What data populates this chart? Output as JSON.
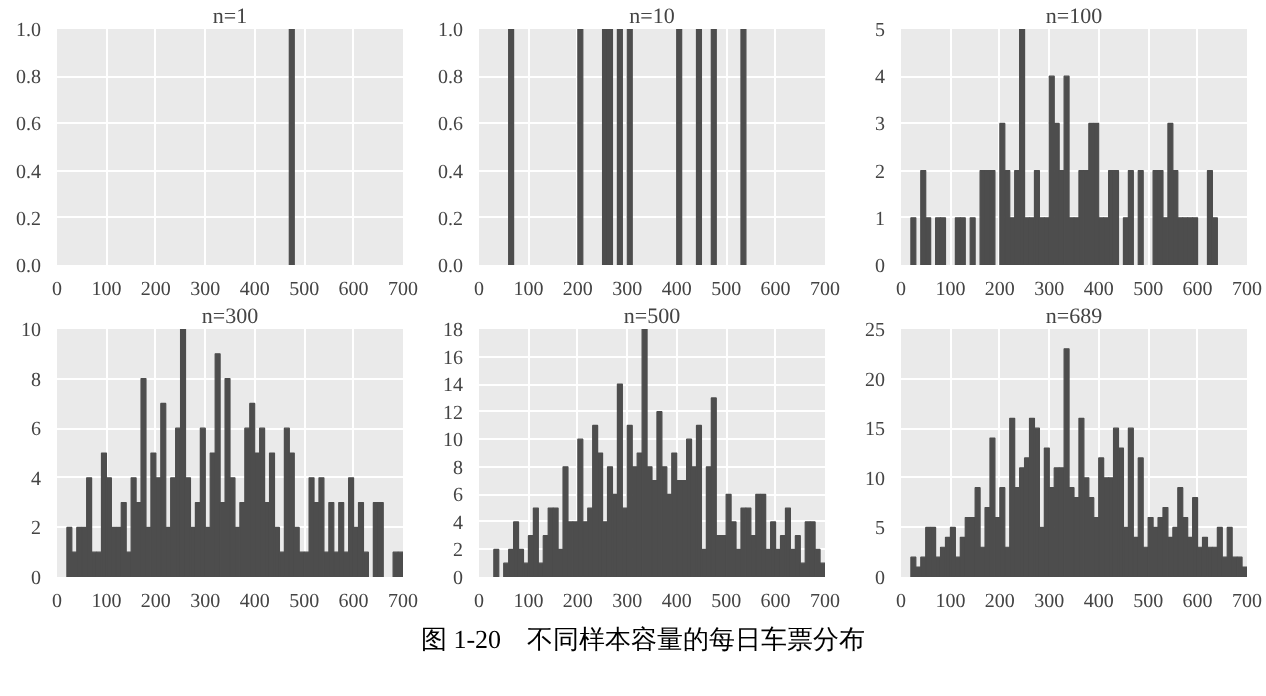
{
  "chart_data": [
    {
      "type": "histogram",
      "title": "n=1",
      "color": "#4d4d4d",
      "grid": true,
      "xlim": [
        0,
        700
      ],
      "ylim": [
        0,
        1
      ],
      "xticks": [
        0,
        100,
        200,
        300,
        400,
        500,
        600,
        700
      ],
      "yticks": [
        {
          "value": 0,
          "label": "0.0"
        },
        {
          "value": 0.2,
          "label": "0.2"
        },
        {
          "value": 0.4,
          "label": "0.4"
        },
        {
          "value": 0.6,
          "label": "0.6"
        },
        {
          "value": 0.8,
          "label": "0.8"
        },
        {
          "value": 1,
          "label": "1.0"
        }
      ],
      "bins": [
        0,
        10,
        20,
        30,
        40,
        50,
        60,
        70,
        80,
        90,
        100,
        110,
        120,
        130,
        140,
        150,
        160,
        170,
        180,
        190,
        200,
        210,
        220,
        230,
        240,
        250,
        260,
        270,
        280,
        290,
        300,
        310,
        320,
        330,
        340,
        350,
        360,
        370,
        380,
        390,
        400,
        410,
        420,
        430,
        440,
        450,
        460,
        470,
        480,
        490,
        500,
        510,
        520,
        530,
        540,
        550,
        560,
        570,
        580,
        590,
        600,
        610,
        620,
        630,
        640,
        650,
        660,
        670,
        680,
        690,
        700
      ],
      "values": [
        0,
        0,
        0,
        0,
        0,
        0,
        0,
        0,
        0,
        0,
        0,
        0,
        0,
        0,
        0,
        0,
        0,
        0,
        0,
        0,
        0,
        0,
        0,
        0,
        0,
        0,
        0,
        0,
        0,
        0,
        0,
        0,
        0,
        0,
        0,
        0,
        0,
        0,
        0,
        0,
        0,
        0,
        0,
        0,
        0,
        0,
        0,
        1,
        0,
        0,
        0,
        0,
        0,
        0,
        0,
        0,
        0,
        0,
        0,
        0,
        0,
        0,
        0,
        0,
        0,
        0,
        0,
        0,
        0,
        0
      ]
    },
    {
      "type": "histogram",
      "title": "n=10",
      "color": "#4d4d4d",
      "grid": true,
      "xlim": [
        0,
        700
      ],
      "ylim": [
        0,
        1
      ],
      "xticks": [
        0,
        100,
        200,
        300,
        400,
        500,
        600,
        700
      ],
      "yticks": [
        {
          "value": 0,
          "label": "0.0"
        },
        {
          "value": 0.2,
          "label": "0.2"
        },
        {
          "value": 0.4,
          "label": "0.4"
        },
        {
          "value": 0.6,
          "label": "0.6"
        },
        {
          "value": 0.8,
          "label": "0.8"
        },
        {
          "value": 1,
          "label": "1.0"
        }
      ],
      "bins": [
        0,
        10,
        20,
        30,
        40,
        50,
        60,
        70,
        80,
        90,
        100,
        110,
        120,
        130,
        140,
        150,
        160,
        170,
        180,
        190,
        200,
        210,
        220,
        230,
        240,
        250,
        260,
        270,
        280,
        290,
        300,
        310,
        320,
        330,
        340,
        350,
        360,
        370,
        380,
        390,
        400,
        410,
        420,
        430,
        440,
        450,
        460,
        470,
        480,
        490,
        500,
        510,
        520,
        530,
        540,
        550,
        560,
        570,
        580,
        590,
        600,
        610,
        620,
        630,
        640,
        650,
        660,
        670,
        680,
        690,
        700
      ],
      "values": [
        0,
        0,
        0,
        0,
        0,
        0,
        1,
        0,
        0,
        0,
        0,
        0,
        0,
        0,
        0,
        0,
        0,
        0,
        0,
        0,
        1,
        0,
        0,
        0,
        0,
        1,
        1,
        0,
        1,
        0,
        1,
        0,
        0,
        0,
        0,
        0,
        0,
        0,
        0,
        0,
        1,
        0,
        0,
        0,
        1,
        0,
        0,
        1,
        0,
        0,
        0,
        0,
        0,
        1,
        0,
        0,
        0,
        0,
        0,
        0,
        0,
        0,
        0,
        0,
        0,
        0,
        0,
        0,
        0,
        0
      ]
    },
    {
      "type": "histogram",
      "title": "n=100",
      "color": "#4d4d4d",
      "grid": true,
      "xlim": [
        0,
        700
      ],
      "ylim": [
        0,
        5
      ],
      "xticks": [
        0,
        100,
        200,
        300,
        400,
        500,
        600,
        700
      ],
      "yticks": [
        0,
        1,
        2,
        3,
        4,
        5
      ],
      "bins": [
        0,
        10,
        20,
        30,
        40,
        50,
        60,
        70,
        80,
        90,
        100,
        110,
        120,
        130,
        140,
        150,
        160,
        170,
        180,
        190,
        200,
        210,
        220,
        230,
        240,
        250,
        260,
        270,
        280,
        290,
        300,
        310,
        320,
        330,
        340,
        350,
        360,
        370,
        380,
        390,
        400,
        410,
        420,
        430,
        440,
        450,
        460,
        470,
        480,
        490,
        500,
        510,
        520,
        530,
        540,
        550,
        560,
        570,
        580,
        590,
        600,
        610,
        620,
        630,
        640,
        650,
        660,
        670,
        680,
        690,
        700
      ],
      "values": [
        0,
        0,
        1,
        0,
        2,
        1,
        0,
        1,
        1,
        0,
        0,
        1,
        1,
        0,
        1,
        0,
        2,
        2,
        2,
        0,
        3,
        2,
        1,
        2,
        5,
        1,
        1,
        2,
        1,
        1,
        4,
        3,
        2,
        4,
        1,
        1,
        2,
        2,
        3,
        3,
        1,
        1,
        2,
        2,
        0,
        1,
        2,
        0,
        2,
        0,
        0,
        2,
        2,
        1,
        3,
        2,
        1,
        1,
        1,
        1,
        0,
        0,
        2,
        1,
        0,
        0,
        0,
        0,
        0,
        0
      ]
    },
    {
      "type": "histogram",
      "title": "n=300",
      "color": "#4d4d4d",
      "grid": true,
      "xlim": [
        0,
        700
      ],
      "ylim": [
        0,
        10
      ],
      "xticks": [
        0,
        100,
        200,
        300,
        400,
        500,
        600,
        700
      ],
      "yticks": [
        0,
        2,
        4,
        6,
        8,
        10
      ],
      "bins": [
        0,
        10,
        20,
        30,
        40,
        50,
        60,
        70,
        80,
        90,
        100,
        110,
        120,
        130,
        140,
        150,
        160,
        170,
        180,
        190,
        200,
        210,
        220,
        230,
        240,
        250,
        260,
        270,
        280,
        290,
        300,
        310,
        320,
        330,
        340,
        350,
        360,
        370,
        380,
        390,
        400,
        410,
        420,
        430,
        440,
        450,
        460,
        470,
        480,
        490,
        500,
        510,
        520,
        530,
        540,
        550,
        560,
        570,
        580,
        590,
        600,
        610,
        620,
        630,
        640,
        650,
        660,
        670,
        680,
        690,
        700
      ],
      "values": [
        0,
        0,
        2,
        1,
        2,
        2,
        4,
        1,
        1,
        5,
        4,
        2,
        2,
        3,
        1,
        4,
        3,
        8,
        2,
        5,
        4,
        7,
        2,
        4,
        6,
        10,
        4,
        2,
        3,
        6,
        2,
        5,
        9,
        3,
        8,
        4,
        2,
        3,
        6,
        7,
        5,
        6,
        3,
        5,
        2,
        1,
        6,
        5,
        2,
        1,
        1,
        4,
        3,
        4,
        1,
        3,
        1,
        3,
        1,
        4,
        2,
        3,
        1,
        0,
        3,
        3,
        0,
        0,
        1,
        1
      ]
    },
    {
      "type": "histogram",
      "title": "n=500",
      "color": "#4d4d4d",
      "grid": true,
      "xlim": [
        0,
        700
      ],
      "ylim": [
        0,
        18
      ],
      "xticks": [
        0,
        100,
        200,
        300,
        400,
        500,
        600,
        700
      ],
      "yticks": [
        0,
        2,
        4,
        6,
        8,
        10,
        12,
        14,
        16,
        18
      ],
      "bins": [
        0,
        10,
        20,
        30,
        40,
        50,
        60,
        70,
        80,
        90,
        100,
        110,
        120,
        130,
        140,
        150,
        160,
        170,
        180,
        190,
        200,
        210,
        220,
        230,
        240,
        250,
        260,
        270,
        280,
        290,
        300,
        310,
        320,
        330,
        340,
        350,
        360,
        370,
        380,
        390,
        400,
        410,
        420,
        430,
        440,
        450,
        460,
        470,
        480,
        490,
        500,
        510,
        520,
        530,
        540,
        550,
        560,
        570,
        580,
        590,
        600,
        610,
        620,
        630,
        640,
        650,
        660,
        670,
        680,
        690,
        700
      ],
      "values": [
        0,
        0,
        0,
        2,
        0,
        1,
        2,
        4,
        2,
        1,
        3,
        5,
        1,
        3,
        5,
        5,
        2,
        8,
        4,
        4,
        10,
        4,
        5,
        11,
        9,
        4,
        8,
        6,
        14,
        5,
        11,
        8,
        9,
        18,
        8,
        7,
        12,
        8,
        6,
        9,
        7,
        7,
        10,
        8,
        11,
        2,
        8,
        13,
        3,
        3,
        6,
        4,
        2,
        5,
        5,
        3,
        6,
        6,
        2,
        4,
        2,
        3,
        5,
        2,
        3,
        1,
        4,
        4,
        2,
        1
      ]
    },
    {
      "type": "histogram",
      "title": "n=689",
      "color": "#4d4d4d",
      "grid": true,
      "xlim": [
        0,
        700
      ],
      "ylim": [
        0,
        25
      ],
      "xticks": [
        0,
        100,
        200,
        300,
        400,
        500,
        600,
        700
      ],
      "yticks": [
        0,
        5,
        10,
        15,
        20,
        25
      ],
      "bins": [
        0,
        10,
        20,
        30,
        40,
        50,
        60,
        70,
        80,
        90,
        100,
        110,
        120,
        130,
        140,
        150,
        160,
        170,
        180,
        190,
        200,
        210,
        220,
        230,
        240,
        250,
        260,
        270,
        280,
        290,
        300,
        310,
        320,
        330,
        340,
        350,
        360,
        370,
        380,
        390,
        400,
        410,
        420,
        430,
        440,
        450,
        460,
        470,
        480,
        490,
        500,
        510,
        520,
        530,
        540,
        550,
        560,
        570,
        580,
        590,
        600,
        610,
        620,
        630,
        640,
        650,
        660,
        670,
        680,
        690,
        700
      ],
      "values": [
        0,
        0,
        2,
        1,
        2,
        5,
        5,
        2,
        3,
        4,
        5,
        2,
        4,
        6,
        6,
        9,
        3,
        7,
        14,
        6,
        9,
        3,
        16,
        9,
        11,
        12,
        16,
        15,
        5,
        13,
        9,
        11,
        11,
        23,
        9,
        8,
        16,
        10,
        8,
        6,
        12,
        10,
        10,
        15,
        13,
        5,
        15,
        4,
        12,
        3,
        6,
        5,
        6,
        7,
        4,
        5,
        9,
        6,
        4,
        8,
        3,
        4,
        3,
        3,
        5,
        2,
        5,
        2,
        2,
        1
      ],
      "annotations": [
        "图 1-20　不同样本容量的每日车票分布"
      ]
    }
  ]
}
